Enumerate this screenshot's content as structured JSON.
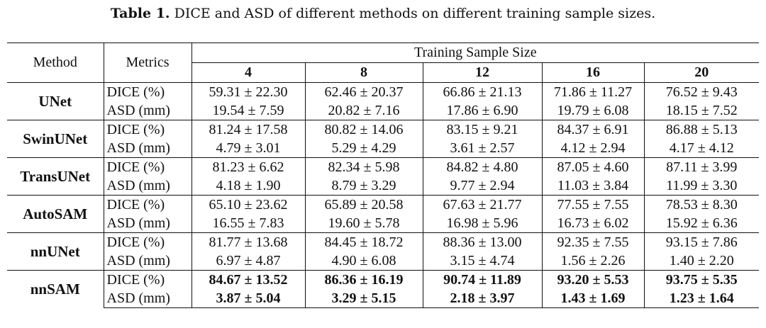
{
  "caption": {
    "label": "Table 1.",
    "text": "DICE and ASD of different methods on different training sample sizes."
  },
  "header": {
    "method": "Method",
    "metrics": "Metrics",
    "group": "Training Sample Size",
    "sizes": [
      "4",
      "8",
      "12",
      "16",
      "20"
    ]
  },
  "metric_labels": {
    "dice": "DICE (%)",
    "asd": "ASD (mm)"
  },
  "rows": [
    {
      "method": "UNet",
      "dice": [
        "59.31 ± 22.30",
        "62.46 ± 20.37",
        "66.86 ± 21.13",
        "71.86 ± 11.27",
        "76.52 ± 9.43"
      ],
      "asd": [
        "19.54 ± 7.59",
        "20.82 ± 7.16",
        "17.86 ± 6.90",
        "19.79 ± 6.08",
        "18.15 ± 7.52"
      ]
    },
    {
      "method": "SwinUNet",
      "dice": [
        "81.24 ± 17.58",
        "80.82 ± 14.06",
        "83.15 ± 9.21",
        "84.37 ± 6.91",
        "86.88 ± 5.13"
      ],
      "asd": [
        "4.79 ± 3.01",
        "5.29 ± 4.29",
        "3.61 ± 2.57",
        "4.12 ± 2.94",
        "4.17 ± 4.12"
      ]
    },
    {
      "method": "TransUNet",
      "dice": [
        "81.23 ± 6.62",
        "82.34 ± 5.98",
        "84.82 ± 4.80",
        "87.05 ± 4.60",
        "87.11 ± 3.99"
      ],
      "asd": [
        "4.18 ± 1.90",
        "8.79 ± 3.29",
        "9.77 ± 2.94",
        "11.03 ± 3.84",
        "11.99 ± 3.30"
      ]
    },
    {
      "method": "AutoSAM",
      "dice": [
        "65.10 ± 23.62",
        "65.89 ± 20.58",
        "67.63 ± 21.77",
        "77.55 ± 7.55",
        "78.53 ± 8.30"
      ],
      "asd": [
        "16.55 ± 7.83",
        "19.60 ± 5.78",
        "16.98 ± 5.96",
        "16.73 ± 6.02",
        "15.92 ± 6.36"
      ]
    },
    {
      "method": "nnUNet",
      "dice": [
        "81.77 ± 13.68",
        "84.45 ± 18.72",
        "88.36 ± 13.00",
        "92.35 ± 7.55",
        "93.15 ± 7.86"
      ],
      "asd": [
        "6.97 ± 4.87",
        "4.90 ± 6.08",
        "3.15 ± 4.74",
        "1.56 ± 2.26",
        "1.40 ± 2.20"
      ]
    },
    {
      "method": "nnSAM",
      "dice": [
        "84.67 ± 13.52",
        "86.36 ± 16.19",
        "90.74 ± 11.89",
        "93.20 ± 5.53",
        "93.75 ± 5.35"
      ],
      "asd": [
        "3.87 ± 5.04",
        "3.29 ± 5.15",
        "2.18 ± 3.97",
        "1.43 ± 1.69",
        "1.23 ± 1.64"
      ]
    }
  ]
}
